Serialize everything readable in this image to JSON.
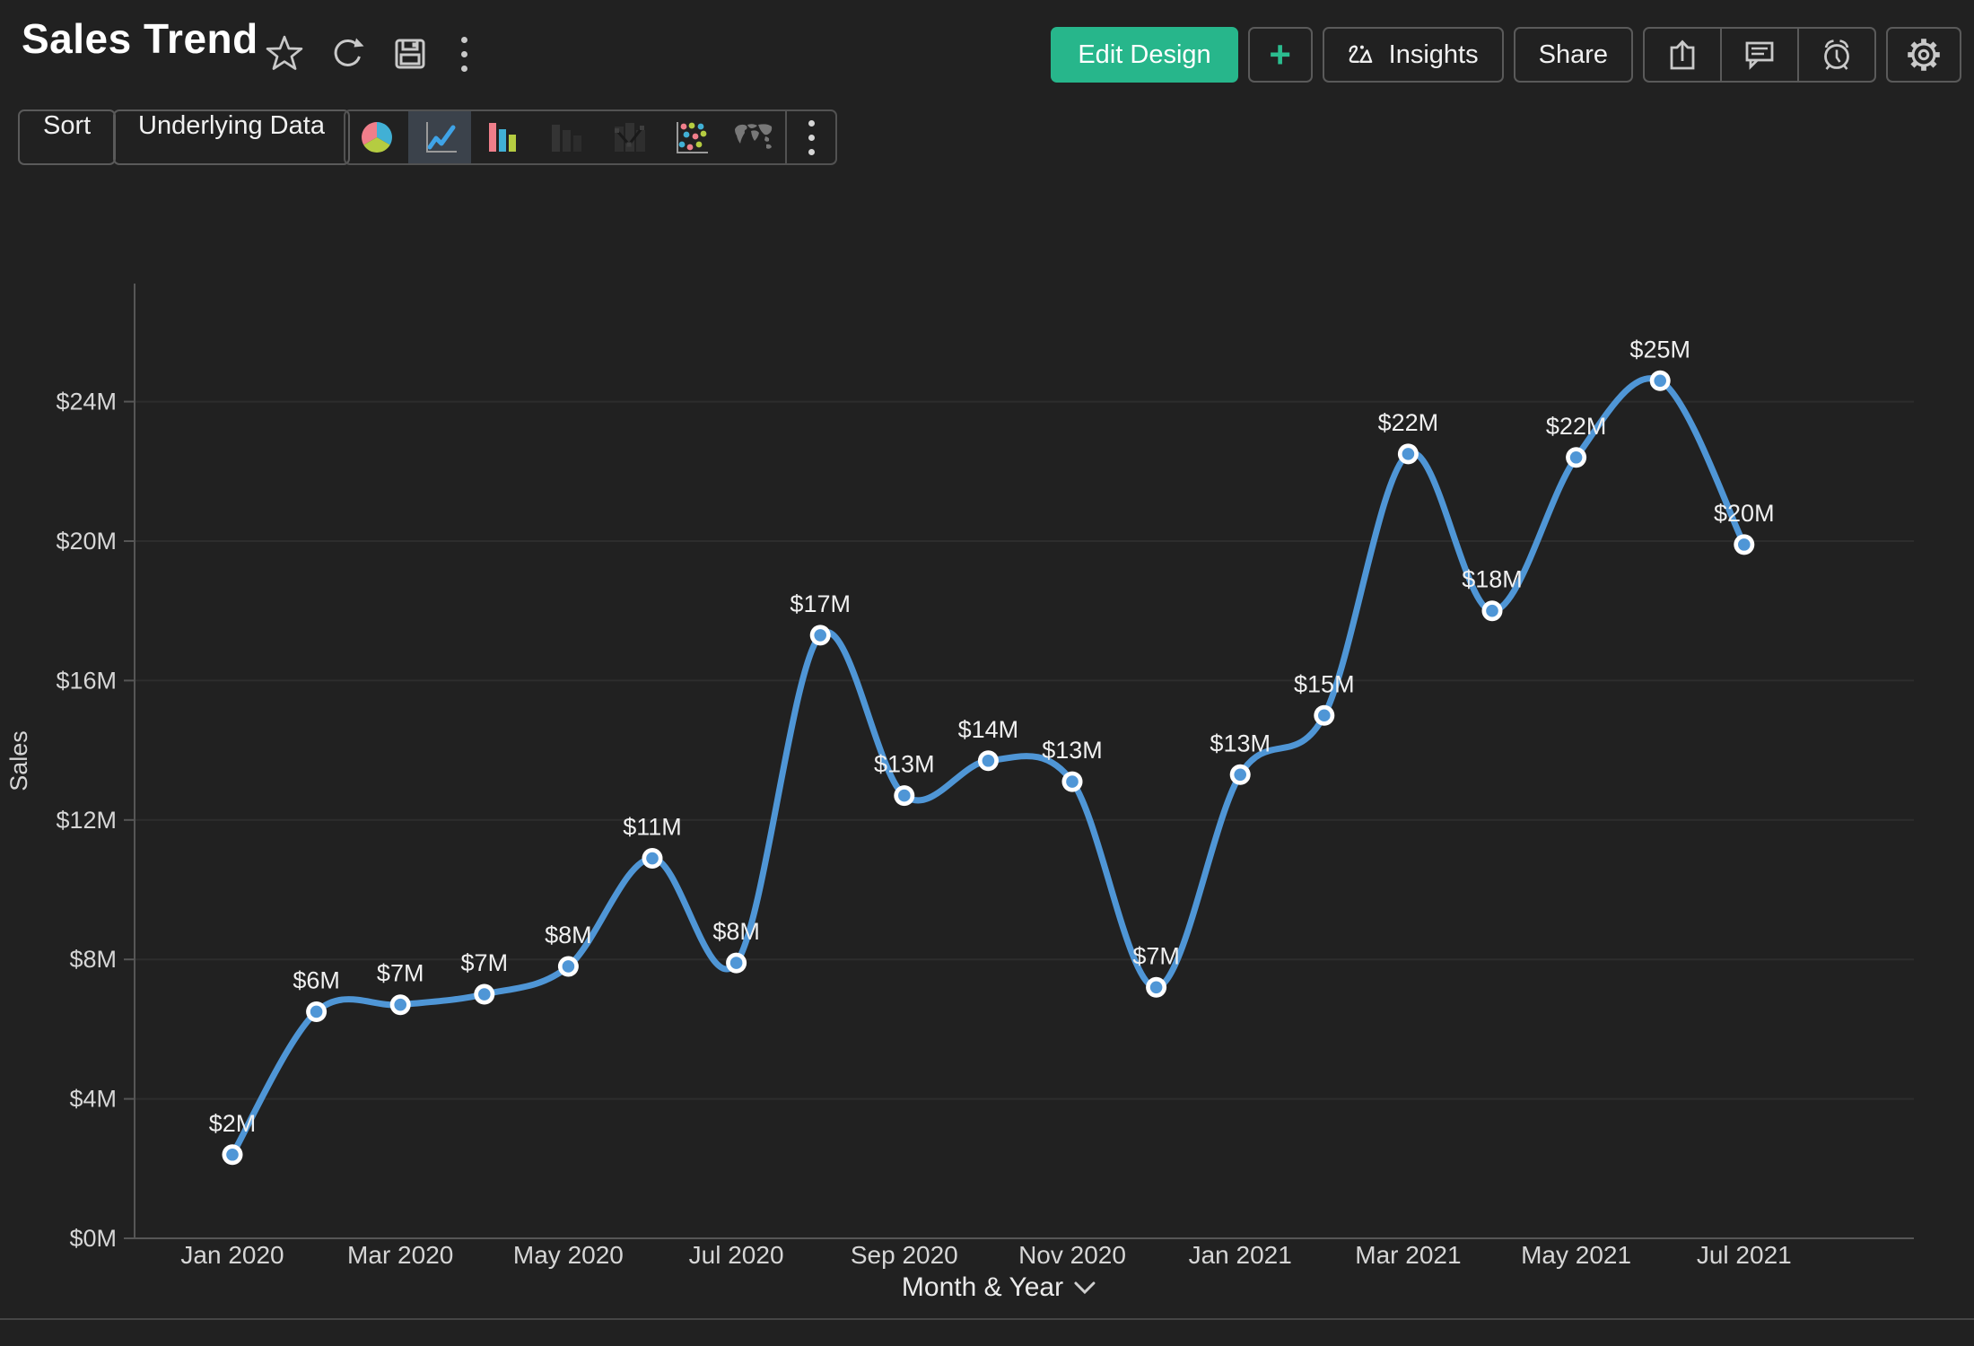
{
  "header": {
    "title": "Sales Trend",
    "actions": {
      "edit_design": "Edit Design",
      "plus": "+",
      "insights": "Insights",
      "share": "Share"
    },
    "icon_names": [
      "favorite-star",
      "refresh",
      "save",
      "more-options"
    ]
  },
  "toolbar": {
    "sort": "Sort",
    "underlying_data": "Underlying Data",
    "chart_types": [
      "pie",
      "line",
      "bar",
      "stacked-bar",
      "combo",
      "scatter",
      "map"
    ],
    "selected_chart_type": "line"
  },
  "colors": {
    "background": "#212121",
    "accent_green": "#27b68b",
    "line_blue": "#4f96d6",
    "marker_ring": "#ffffff",
    "grid": "#2d2d2d",
    "axis": "#565656",
    "tick_text": "#d6d6d6",
    "label_text": "#f0f0f0",
    "icon_pink": "#ef7e8a",
    "icon_cyan": "#41b0d5",
    "icon_lime": "#b5cc41"
  },
  "chart_data": {
    "type": "line",
    "title": "Sales Trend",
    "x": [
      "Jan 2020",
      "Feb 2020",
      "Mar 2020",
      "Apr 2020",
      "May 2020",
      "Jun 2020",
      "Jul 2020",
      "Aug 2020",
      "Sep 2020",
      "Oct 2020",
      "Nov 2020",
      "Dec 2020",
      "Jan 2021",
      "Feb 2021",
      "Mar 2021",
      "Apr 2021",
      "May 2021",
      "Jun 2021",
      "Jul 2021"
    ],
    "values": [
      2.4,
      6.5,
      6.7,
      7.0,
      7.8,
      10.9,
      7.9,
      17.3,
      12.7,
      13.7,
      13.1,
      7.2,
      13.3,
      15.0,
      22.5,
      18.0,
      22.4,
      24.6,
      19.9
    ],
    "point_labels": [
      "$2M",
      "$6M",
      "$7M",
      "$7M",
      "$8M",
      "$11M",
      "$8M",
      "$17M",
      "$13M",
      "$14M",
      "$13M",
      "$7M",
      "$13M",
      "$15M",
      "$22M",
      "$18M",
      "$22M",
      "$25M",
      "$20M"
    ],
    "x_tick_labels": [
      "Jan 2020",
      "Mar 2020",
      "May 2020",
      "Jul 2020",
      "Sep 2020",
      "Nov 2020",
      "Jan 2021",
      "Mar 2021",
      "May 2021",
      "Jul 2021"
    ],
    "y_ticks": [
      "$0M",
      "$4M",
      "$8M",
      "$12M",
      "$16M",
      "$20M",
      "$24M"
    ],
    "y_tick_values": [
      0,
      4,
      8,
      12,
      16,
      20,
      24
    ],
    "xlabel": "Month & Year",
    "ylabel": "Sales",
    "ylim": [
      0,
      26.5
    ],
    "grid": "horizontal-only",
    "legend": "none",
    "line_color": "#4f96d6"
  }
}
